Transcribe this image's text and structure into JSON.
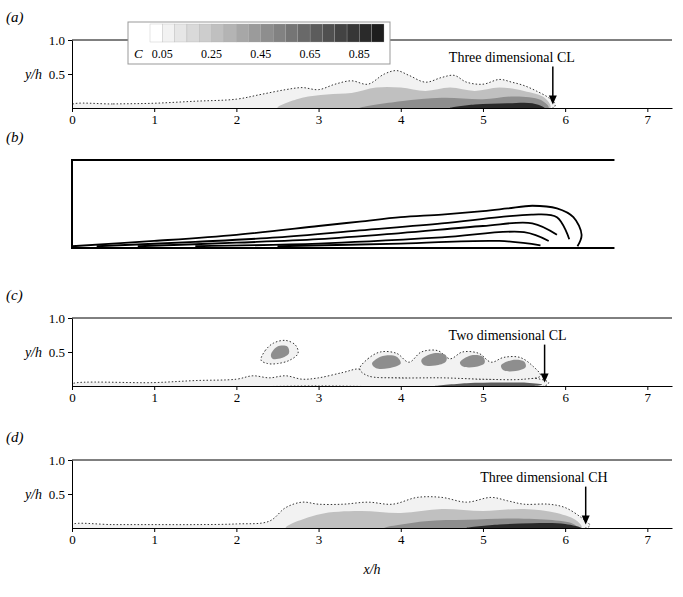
{
  "chart_data": [
    {
      "type": "contour",
      "title": "(a)",
      "y_label": "y/h",
      "xlim": [
        0,
        7.3
      ],
      "ylim": [
        0,
        1
      ],
      "xticks": [
        0,
        1,
        2,
        3,
        4,
        5,
        6,
        7
      ],
      "yticks": [
        0.5,
        {
          "value": 1,
          "label": "1.0"
        }
      ],
      "colorbar": {
        "label": "C",
        "range": [
          0,
          0.95
        ],
        "levels": [
          0,
          0.05,
          0.1,
          0.15,
          0.2,
          0.25,
          0.3,
          0.35,
          0.4,
          0.45,
          0.5,
          0.55,
          0.6,
          0.65,
          0.7,
          0.75,
          0.8,
          0.85,
          0.9,
          0.95
        ],
        "ticks": [
          0.05,
          0.25,
          0.45,
          0.65,
          0.85
        ]
      },
      "annotations": [
        {
          "text": "Three dimensional CL",
          "x": 5.85,
          "y": 0.05
        }
      ],
      "series": [
        {
          "level": 0.05,
          "line_style": "dotted",
          "x": [
            0,
            0.5,
            1,
            1.5,
            2,
            2.3,
            2.6,
            2.8,
            3,
            3.2,
            3.4,
            3.6,
            3.8,
            3.95,
            4.1,
            4.3,
            4.5,
            4.65,
            4.8,
            5,
            5.2,
            5.35,
            5.5,
            5.65,
            5.8,
            5.88,
            5.85,
            3,
            0
          ],
          "values": [
            0.05,
            0.06,
            0.07,
            0.1,
            0.13,
            0.2,
            0.27,
            0.3,
            0.27,
            0.35,
            0.4,
            0.35,
            0.5,
            0.55,
            0.48,
            0.38,
            0.45,
            0.48,
            0.38,
            0.35,
            0.42,
            0.38,
            0.33,
            0.25,
            0.15,
            0.05,
            0,
            0,
            0
          ]
        },
        {
          "level": 0.25,
          "line_style": "none",
          "x": [
            2.5,
            2.8,
            3.1,
            3.4,
            3.7,
            4,
            4.3,
            4.6,
            4.9,
            5.2,
            5.5,
            5.75,
            5.82,
            4
          ],
          "values": [
            0,
            0.15,
            0.2,
            0.22,
            0.3,
            0.3,
            0.25,
            0.3,
            0.25,
            0.3,
            0.25,
            0.15,
            0,
            0
          ]
        },
        {
          "level": 0.45,
          "line_style": "none",
          "x": [
            3.5,
            4,
            4.5,
            5,
            5.4,
            5.7,
            5.8,
            4.5
          ],
          "values": [
            0,
            0.1,
            0.15,
            0.13,
            0.17,
            0.12,
            0,
            0
          ]
        },
        {
          "level": 0.85,
          "line_style": "none",
          "x": [
            4.6,
            4.9,
            5.3,
            5.6,
            5.75,
            5.2
          ],
          "values": [
            0,
            0.05,
            0.07,
            0.07,
            0,
            0
          ]
        }
      ]
    },
    {
      "type": "line",
      "title": "(b)",
      "tick_labels": false,
      "xlim": [
        0,
        6.6
      ],
      "ylim": [
        0,
        1
      ],
      "series": [
        {
          "color": "#000000",
          "line_style": "solid",
          "x": [
            0,
            1,
            2,
            3,
            3.5,
            4,
            4.5,
            5,
            5.3,
            5.6,
            5.9,
            6.1,
            6.2,
            6.15
          ],
          "values": [
            0.02,
            0.08,
            0.15,
            0.25,
            0.3,
            0.35,
            0.38,
            0.42,
            0.45,
            0.48,
            0.45,
            0.35,
            0.15,
            0.02
          ]
        },
        {
          "color": "#000000",
          "line_style": "solid",
          "x": [
            0.3,
            1.5,
            2.5,
            3.5,
            4.5,
            5.2,
            5.6,
            5.9,
            6.05
          ],
          "values": [
            0.02,
            0.07,
            0.12,
            0.2,
            0.28,
            0.35,
            0.38,
            0.35,
            0.1
          ]
        },
        {
          "color": "#000000",
          "line_style": "solid",
          "x": [
            0.8,
            2,
            3,
            4,
            5,
            5.6,
            5.9
          ],
          "values": [
            0.02,
            0.06,
            0.1,
            0.17,
            0.25,
            0.28,
            0.15
          ]
        },
        {
          "color": "#000000",
          "line_style": "solid",
          "x": [
            1.5,
            3,
            4.5,
            5.5,
            5.8
          ],
          "values": [
            0.02,
            0.05,
            0.12,
            0.18,
            0.08
          ]
        },
        {
          "color": "#000000",
          "line_style": "solid",
          "x": [
            2.5,
            4,
            5.2,
            5.7
          ],
          "values": [
            0.02,
            0.05,
            0.08,
            0.03
          ]
        }
      ]
    },
    {
      "type": "contour",
      "title": "(c)",
      "y_label": "y/h",
      "xlim": [
        0,
        7.3
      ],
      "ylim": [
        0,
        1
      ],
      "xticks": [
        0,
        1,
        2,
        3,
        4,
        5,
        6,
        7
      ],
      "yticks": [
        0.5,
        {
          "value": 1,
          "label": "1.0"
        }
      ],
      "annotations": [
        {
          "text": "Two dimensional CL",
          "x": 5.75,
          "y": 0.05
        }
      ],
      "series": [
        {
          "level": 0.05,
          "line_style": "dotted",
          "x": [
            0,
            1,
            1.5,
            2,
            2.2,
            2.4,
            2.6,
            2.8,
            3,
            3.3,
            3.5,
            3.7,
            4,
            4.5,
            5,
            5.4,
            5.7,
            5.8,
            5.75,
            3,
            0
          ],
          "values": [
            0.03,
            0.05,
            0.08,
            0.1,
            0.15,
            0.12,
            0.15,
            0.1,
            0.12,
            0.2,
            0.25,
            0.15,
            0.12,
            0.15,
            0.1,
            0.12,
            0.1,
            0.05,
            0,
            0,
            0
          ]
        },
        {
          "level": 0.05,
          "line_style": "dotted",
          "x": [
            2.3,
            2.35,
            2.45,
            2.6,
            2.72,
            2.75,
            2.65,
            2.5,
            2.38
          ],
          "values": [
            0.38,
            0.52,
            0.63,
            0.67,
            0.6,
            0.48,
            0.38,
            0.33,
            0.33
          ]
        },
        {
          "level": 0.05,
          "line_style": "dotted",
          "x": [
            3.5,
            3.6,
            3.75,
            3.95,
            4.1,
            4.25,
            4.45,
            4.6,
            4.75,
            4.95,
            5.1,
            5.25,
            5.45,
            5.6,
            5.7,
            5.5,
            5,
            4.5,
            4,
            3.6
          ],
          "values": [
            0.25,
            0.4,
            0.5,
            0.48,
            0.35,
            0.5,
            0.52,
            0.4,
            0.5,
            0.48,
            0.35,
            0.42,
            0.42,
            0.3,
            0.15,
            0.1,
            0.1,
            0.12,
            0.12,
            0.15
          ]
        },
        {
          "level": 0.45,
          "line_style": "none",
          "x": [
            2.42,
            2.5,
            2.62,
            2.64,
            2.55,
            2.44
          ],
          "values": [
            0.46,
            0.58,
            0.58,
            0.48,
            0.41,
            0.4
          ]
        },
        {
          "level": 0.45,
          "line_style": "none",
          "x": [
            3.65,
            3.78,
            3.95,
            4,
            3.85,
            3.7
          ],
          "values": [
            0.33,
            0.44,
            0.43,
            0.33,
            0.26,
            0.26
          ]
        },
        {
          "level": 0.45,
          "line_style": "none",
          "x": [
            4.25,
            4.4,
            4.55,
            4.55,
            4.42,
            4.28
          ],
          "values": [
            0.38,
            0.48,
            0.45,
            0.36,
            0.3,
            0.31
          ]
        },
        {
          "level": 0.45,
          "line_style": "none",
          "x": [
            4.72,
            4.85,
            5,
            5.02,
            4.9,
            4.75
          ],
          "values": [
            0.35,
            0.45,
            0.43,
            0.34,
            0.28,
            0.29
          ]
        },
        {
          "level": 0.45,
          "line_style": "none",
          "x": [
            5.22,
            5.35,
            5.5,
            5.52,
            5.4,
            5.25
          ],
          "values": [
            0.3,
            0.38,
            0.36,
            0.28,
            0.22,
            0.23
          ]
        },
        {
          "level": 0.65,
          "line_style": "none",
          "x": [
            4.4,
            4.8,
            5.2,
            5.5,
            5.72,
            5.6,
            5,
            4.4
          ],
          "values": [
            0,
            0.04,
            0.05,
            0.05,
            0.02,
            0,
            0,
            0
          ]
        }
      ]
    },
    {
      "type": "contour",
      "title": "(d)",
      "y_label": "y/h",
      "x_label": "x/h",
      "xlim": [
        0,
        7.3
      ],
      "ylim": [
        0,
        1
      ],
      "xticks": [
        0,
        1,
        2,
        3,
        4,
        5,
        6,
        7
      ],
      "yticks": [
        0.5,
        {
          "value": 1,
          "label": "1.0"
        }
      ],
      "annotations": [
        {
          "text": "Three dimensional CH",
          "x": 6.25,
          "y": 0.05
        }
      ],
      "series": [
        {
          "level": 0.05,
          "line_style": "dotted",
          "x": [
            0,
            0.5,
            1,
            1.5,
            2,
            2.4,
            2.6,
            2.8,
            3,
            3.3,
            3.6,
            3.9,
            4.2,
            4.5,
            4.8,
            5.1,
            5.3,
            5.5,
            5.8,
            6,
            6.2,
            6.3,
            6.25,
            0
          ],
          "values": [
            0.05,
            0.05,
            0.05,
            0.05,
            0.06,
            0.1,
            0.3,
            0.38,
            0.35,
            0.35,
            0.38,
            0.35,
            0.45,
            0.45,
            0.38,
            0.45,
            0.4,
            0.35,
            0.35,
            0.3,
            0.15,
            0.04,
            0,
            0
          ]
        },
        {
          "level": 0.25,
          "line_style": "none",
          "x": [
            2.6,
            3,
            3.5,
            4,
            4.5,
            5,
            5.5,
            5.9,
            6.15,
            6.2,
            4.5
          ],
          "values": [
            0,
            0.2,
            0.25,
            0.22,
            0.28,
            0.25,
            0.28,
            0.22,
            0.1,
            0,
            0
          ]
        },
        {
          "level": 0.45,
          "line_style": "none",
          "x": [
            3.8,
            4.3,
            4.8,
            5.3,
            5.8,
            6.1,
            6.15,
            5
          ],
          "values": [
            0,
            0.1,
            0.12,
            0.14,
            0.12,
            0.06,
            0,
            0
          ]
        },
        {
          "level": 0.85,
          "line_style": "none",
          "x": [
            4.8,
            5.2,
            5.6,
            6,
            6.2,
            5.5
          ],
          "values": [
            0,
            0.05,
            0.07,
            0.06,
            0,
            0
          ]
        }
      ]
    }
  ]
}
